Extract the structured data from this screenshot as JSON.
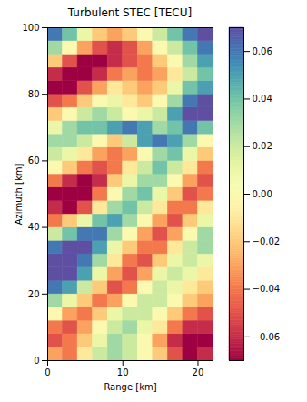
{
  "chart_data": {
    "type": "heatmap",
    "title": "Turbulent STEC [TECU]",
    "x_label": "Range [km]",
    "y_label": "Azimuth [km]",
    "xlim": [
      0,
      22
    ],
    "ylim": [
      0,
      100
    ],
    "xticks": [
      0,
      10,
      20
    ],
    "yticks": [
      0,
      20,
      40,
      60,
      80,
      100
    ],
    "x_bins": [
      0,
      2,
      4,
      6,
      8,
      10,
      12,
      14,
      16,
      18,
      20,
      22
    ],
    "y_bins": [
      0,
      4,
      8,
      12,
      16,
      20,
      24,
      28,
      32,
      36,
      40,
      44,
      48,
      52,
      56,
      60,
      64,
      68,
      72,
      76,
      80,
      84,
      88,
      92,
      96,
      100
    ],
    "color": "spectral",
    "colorbar_lim": [
      -0.07,
      0.07
    ],
    "colorbar_ticks": [
      {
        "value": -0.06,
        "label": "−0.06"
      },
      {
        "value": -0.04,
        "label": "−0.04"
      },
      {
        "value": -0.02,
        "label": "−0.02"
      },
      {
        "value": 0,
        "label": "0.00"
      },
      0.02,
      0.04,
      0.06
    ],
    "values": [
      [
        -0.03,
        -0.04,
        -0.01,
        0.02,
        0.03,
        0.02,
        0.0,
        -0.02,
        -0.05,
        -0.07,
        -0.06
      ],
      [
        -0.05,
        -0.04,
        -0.02,
        0.01,
        0.03,
        0.02,
        0.0,
        -0.03,
        -0.06,
        -0.07,
        -0.07
      ],
      [
        -0.04,
        -0.05,
        -0.03,
        0.0,
        0.02,
        0.03,
        0.01,
        -0.01,
        -0.04,
        -0.06,
        -0.06
      ],
      [
        0.0,
        -0.03,
        -0.04,
        -0.02,
        0.01,
        0.02,
        0.02,
        0.0,
        -0.02,
        -0.04,
        -0.05
      ],
      [
        0.03,
        0.01,
        -0.02,
        -0.04,
        -0.03,
        0.0,
        0.02,
        0.02,
        0.0,
        -0.02,
        -0.03
      ],
      [
        0.06,
        0.05,
        0.02,
        -0.02,
        -0.05,
        -0.04,
        0.0,
        0.02,
        0.01,
        -0.01,
        -0.02
      ],
      [
        0.07,
        0.07,
        0.05,
        0.01,
        -0.03,
        -0.05,
        -0.03,
        0.01,
        0.02,
        0.01,
        -0.01
      ],
      [
        0.07,
        0.07,
        0.06,
        0.03,
        -0.01,
        -0.04,
        -0.05,
        -0.02,
        0.01,
        0.02,
        0.01
      ],
      [
        0.06,
        0.07,
        0.07,
        0.05,
        0.01,
        -0.02,
        -0.04,
        -0.04,
        -0.01,
        0.02,
        0.03
      ],
      [
        0.02,
        0.04,
        0.06,
        0.06,
        0.03,
        0.0,
        -0.03,
        -0.05,
        -0.03,
        0.0,
        0.03
      ],
      [
        -0.04,
        -0.02,
        0.01,
        0.04,
        0.05,
        0.03,
        0.0,
        -0.03,
        -0.05,
        -0.02,
        0.01
      ],
      [
        -0.06,
        -0.07,
        -0.05,
        -0.01,
        0.03,
        0.04,
        0.02,
        -0.01,
        -0.04,
        -0.04,
        -0.01
      ],
      [
        -0.07,
        -0.07,
        -0.07,
        -0.04,
        0.0,
        0.03,
        0.04,
        0.01,
        -0.02,
        -0.05,
        -0.04
      ],
      [
        -0.04,
        -0.06,
        -0.07,
        -0.06,
        -0.02,
        0.01,
        0.03,
        0.03,
        0.0,
        -0.03,
        -0.05
      ],
      [
        0.0,
        -0.02,
        -0.04,
        -0.05,
        -0.04,
        -0.01,
        0.02,
        0.04,
        0.02,
        -0.01,
        -0.04
      ],
      [
        0.02,
        0.01,
        -0.01,
        -0.03,
        -0.04,
        -0.03,
        0.0,
        0.03,
        0.04,
        0.01,
        -0.02
      ],
      [
        0.03,
        0.03,
        0.02,
        0.0,
        -0.02,
        0.02,
        0.05,
        0.06,
        0.05,
        0.03,
        0.0
      ],
      [
        0.01,
        0.03,
        0.04,
        0.04,
        0.05,
        0.06,
        0.05,
        0.03,
        0.04,
        0.06,
        0.04
      ],
      [
        -0.02,
        0.0,
        0.02,
        0.03,
        0.02,
        0.0,
        0.01,
        0.02,
        0.05,
        0.07,
        0.07
      ],
      [
        -0.05,
        -0.04,
        -0.02,
        0.0,
        0.01,
        -0.01,
        -0.02,
        0.0,
        0.03,
        0.06,
        0.07
      ],
      [
        -0.07,
        -0.07,
        -0.05,
        -0.03,
        -0.01,
        -0.02,
        -0.03,
        -0.02,
        0.01,
        0.04,
        0.05
      ],
      [
        -0.06,
        -0.07,
        -0.07,
        -0.06,
        -0.04,
        -0.03,
        -0.04,
        -0.03,
        -0.01,
        0.02,
        0.04
      ],
      [
        -0.02,
        -0.05,
        -0.07,
        -0.07,
        -0.06,
        -0.05,
        -0.04,
        -0.02,
        0.0,
        0.03,
        0.05
      ],
      [
        0.03,
        0.0,
        -0.03,
        -0.05,
        -0.06,
        -0.05,
        -0.03,
        0.0,
        0.02,
        0.04,
        0.06
      ],
      [
        0.06,
        0.04,
        0.01,
        -0.02,
        -0.03,
        -0.02,
        0.0,
        0.02,
        0.04,
        0.06,
        0.07
      ]
    ]
  }
}
